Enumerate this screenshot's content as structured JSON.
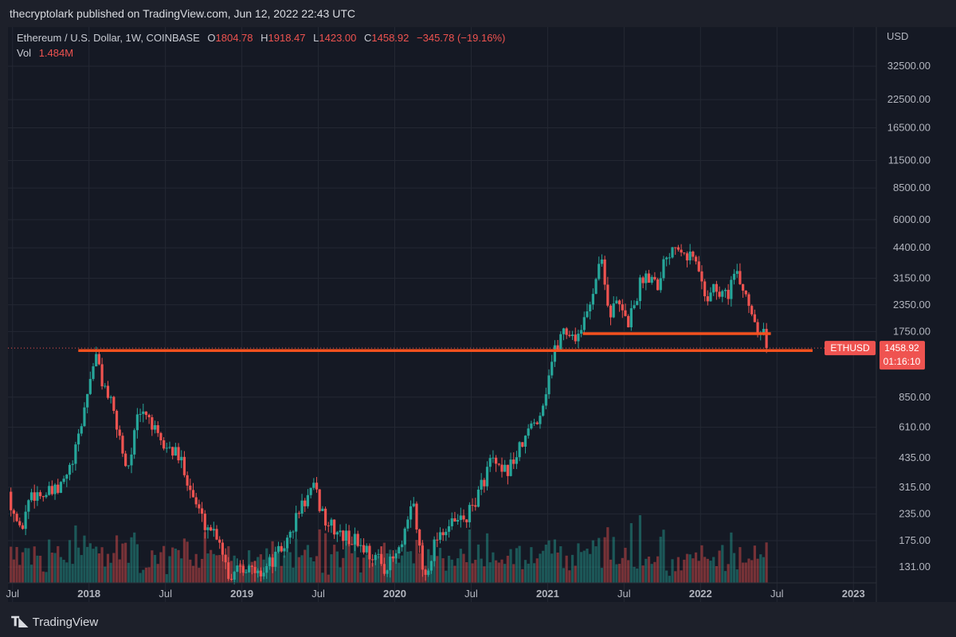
{
  "header": {
    "publisher_line": "thecryptolark published on TradingView.com, Jun 12, 2022 22:43 UTC"
  },
  "legend": {
    "symbol": "Ethereum / U.S. Dollar, 1W, COINBASE",
    "o_label": "O",
    "o_value": "1804.78",
    "h_label": "H",
    "h_value": "1918.47",
    "l_label": "L",
    "l_value": "1423.00",
    "c_label": "C",
    "c_value": "1458.92",
    "change": "−345.78 (−19.16%)",
    "vol_label": "Vol",
    "vol_value": "1.484M"
  },
  "footer": {
    "brand": "TradingView"
  },
  "colors": {
    "up": "#26a69a",
    "down": "#ef5350",
    "line": "#f4511e",
    "grid": "#242833",
    "text": "#b2b5be",
    "badge": "#ef5350"
  },
  "chart_data": {
    "type": "candlestick",
    "title": "Ethereum / U.S. Dollar, 1W, COINBASE",
    "y_scale": "log",
    "currency": "USD",
    "ylim": [
      110,
      50000
    ],
    "y_ticks": [
      "32500.00",
      "22500.00",
      "16500.00",
      "11500.00",
      "8500.00",
      "6000.00",
      "4400.00",
      "3150.00",
      "2350.00",
      "1750.00",
      "850.00",
      "610.00",
      "435.00",
      "315.00",
      "235.00",
      "175.00",
      "131.00"
    ],
    "x_ticks": [
      {
        "label": "Jul",
        "t": 2017.5
      },
      {
        "label": "2018",
        "t": 2018.0
      },
      {
        "label": "Jul",
        "t": 2018.5
      },
      {
        "label": "2019",
        "t": 2019.0
      },
      {
        "label": "Jul",
        "t": 2019.5
      },
      {
        "label": "2020",
        "t": 2020.0
      },
      {
        "label": "Jul",
        "t": 2020.5
      },
      {
        "label": "2021",
        "t": 2021.0
      },
      {
        "label": "Jul",
        "t": 2021.5
      },
      {
        "label": "2022",
        "t": 2022.0
      },
      {
        "label": "Jul",
        "t": 2022.5
      },
      {
        "label": "2023",
        "t": 2023.0
      }
    ],
    "xlim": [
      2017.47,
      2023.15
    ],
    "price_path": [
      [
        2017.47,
        300
      ],
      [
        2017.55,
        190
      ],
      [
        2017.62,
        300
      ],
      [
        2017.7,
        290
      ],
      [
        2017.8,
        300
      ],
      [
        2017.9,
        420
      ],
      [
        2017.97,
        750
      ],
      [
        2018.04,
        1380
      ],
      [
        2018.08,
        1050
      ],
      [
        2018.13,
        850
      ],
      [
        2018.2,
        550
      ],
      [
        2018.25,
        380
      ],
      [
        2018.32,
        680
      ],
      [
        2018.38,
        720
      ],
      [
        2018.46,
        510
      ],
      [
        2018.55,
        470
      ],
      [
        2018.62,
        400
      ],
      [
        2018.68,
        285
      ],
      [
        2018.75,
        215
      ],
      [
        2018.85,
        185
      ],
      [
        2018.92,
        115
      ],
      [
        2018.98,
        140
      ],
      [
        2019.1,
        120
      ],
      [
        2019.2,
        140
      ],
      [
        2019.3,
        175
      ],
      [
        2019.38,
        250
      ],
      [
        2019.47,
        310
      ],
      [
        2019.55,
        215
      ],
      [
        2019.65,
        185
      ],
      [
        2019.75,
        175
      ],
      [
        2019.85,
        150
      ],
      [
        2019.95,
        130
      ],
      [
        2020.05,
        165
      ],
      [
        2020.12,
        270
      ],
      [
        2020.19,
        115
      ],
      [
        2020.28,
        190
      ],
      [
        2020.38,
        210
      ],
      [
        2020.48,
        230
      ],
      [
        2020.56,
        310
      ],
      [
        2020.63,
        430
      ],
      [
        2020.7,
        355
      ],
      [
        2020.8,
        450
      ],
      [
        2020.88,
        590
      ],
      [
        2020.96,
        740
      ],
      [
        2021.03,
        1300
      ],
      [
        2021.1,
        1800
      ],
      [
        2021.18,
        1650
      ],
      [
        2021.25,
        2000
      ],
      [
        2021.32,
        3300
      ],
      [
        2021.36,
        3950
      ],
      [
        2021.4,
        2100
      ],
      [
        2021.46,
        2400
      ],
      [
        2021.52,
        1900
      ],
      [
        2021.56,
        2300
      ],
      [
        2021.62,
        3200
      ],
      [
        2021.67,
        3300
      ],
      [
        2021.72,
        3000
      ],
      [
        2021.76,
        3800
      ],
      [
        2021.82,
        4600
      ],
      [
        2021.86,
        4700
      ],
      [
        2021.92,
        4100
      ],
      [
        2021.96,
        3900
      ],
      [
        2022.0,
        3200
      ],
      [
        2022.04,
        2500
      ],
      [
        2022.08,
        2900
      ],
      [
        2022.12,
        2600
      ],
      [
        2022.18,
        2700
      ],
      [
        2022.22,
        3300
      ],
      [
        2022.27,
        2900
      ],
      [
        2022.32,
        2400
      ],
      [
        2022.36,
        1900
      ],
      [
        2022.41,
        1800
      ],
      [
        2022.45,
        1459
      ]
    ],
    "last_price": "1458.92",
    "countdown": "01:16:10",
    "symbol_tag": "ETHUSD",
    "annotations": [
      {
        "type": "hline",
        "price": 1420,
        "t_start": 2017.93,
        "t_end": 2023.18,
        "color": "#f4511e"
      },
      {
        "type": "hline",
        "price": 1710,
        "t_start": 2021.23,
        "t_end": 2022.46,
        "color": "#f4511e"
      }
    ]
  }
}
